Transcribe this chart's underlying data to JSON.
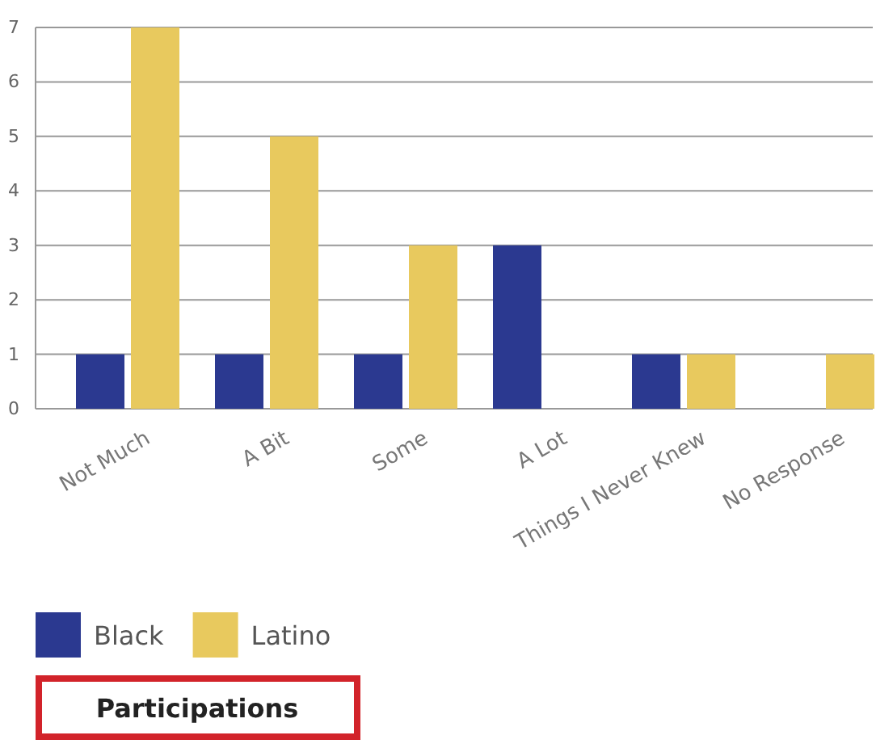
{
  "chart_data": {
    "type": "bar",
    "title": "Participations",
    "categories": [
      "Not Much",
      "A Bit",
      "Some",
      "A Lot",
      "Things I Never Knew",
      "No Response"
    ],
    "series": [
      {
        "name": "Black",
        "color": "#2b3990",
        "values": [
          1,
          1,
          1,
          3,
          1,
          0
        ]
      },
      {
        "name": "Latino",
        "color": "#e8c95e",
        "values": [
          7,
          5,
          3,
          0,
          1,
          1
        ]
      }
    ],
    "ylim": [
      0,
      7
    ],
    "yticks": [
      0,
      1,
      2,
      3,
      4,
      5,
      6,
      7
    ],
    "grid": "y",
    "legend": "bottom left"
  }
}
